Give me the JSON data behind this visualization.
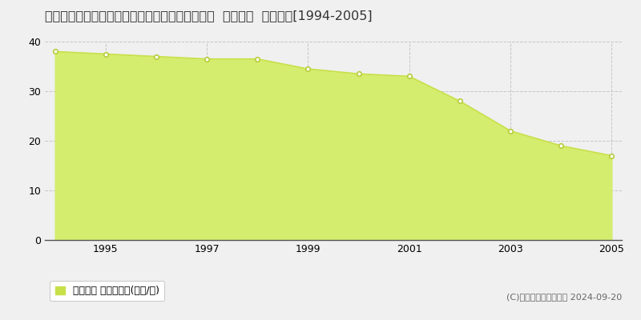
{
  "title": "愛知県知多郡南知多町大字師崎字神戸浦１７４番  公示地価  地価推移[1994-2005]",
  "years": [
    1994,
    1995,
    1996,
    1997,
    1998,
    1999,
    2000,
    2001,
    2002,
    2003,
    2004,
    2005
  ],
  "values": [
    38.0,
    37.5,
    37.0,
    36.5,
    36.5,
    34.5,
    33.5,
    33.0,
    28.0,
    22.0,
    19.0,
    17.0
  ],
  "line_color": "#c8e04a",
  "fill_color": "#d4ed6e",
  "marker_color": "#ffffff",
  "marker_edge_color": "#b8cc3a",
  "ylim": [
    0,
    40
  ],
  "yticks": [
    0,
    10,
    20,
    30,
    40
  ],
  "xticks": [
    1995,
    1997,
    1999,
    2001,
    2003,
    2005
  ],
  "grid_color": "#bbbbbb",
  "bg_color": "#f0f0f0",
  "plot_bg_color": "#f0f0f0",
  "legend_label": "公示地価 平均坪単価(万円/坪)",
  "legend_color": "#c8e04a",
  "copyright_text": "(C)土地価格ドットコム 2024-09-20",
  "title_fontsize": 11.5,
  "axis_fontsize": 9,
  "legend_fontsize": 9,
  "copyright_fontsize": 8
}
